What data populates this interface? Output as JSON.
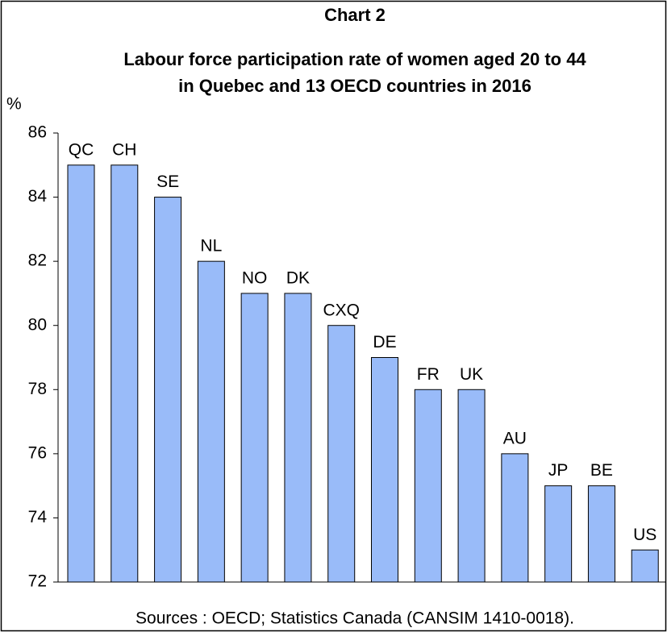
{
  "chart_data": {
    "type": "bar",
    "title": "Chart 2",
    "subtitle": [
      "Labour force participation rate of women aged 20 to 44",
      "in Quebec and 13 OECD countries in 2016"
    ],
    "y_label": "%",
    "source": "Sources : OECD; Statistics Canada (CANSIM 1410-0018).",
    "categories": [
      "QC",
      "CH",
      "SE",
      "NL",
      "NO",
      "DK",
      "CXQ",
      "DE",
      "FR",
      "UK",
      "AU",
      "JP",
      "BE",
      "US"
    ],
    "values": [
      85,
      85,
      84,
      82,
      81,
      81,
      80,
      79,
      78,
      78,
      76,
      75,
      75,
      73
    ],
    "color": "#99bbf9",
    "ylim": [
      72,
      86
    ],
    "yticks": [
      72,
      74,
      76,
      78,
      80,
      82,
      84,
      86
    ],
    "grid": false
  }
}
